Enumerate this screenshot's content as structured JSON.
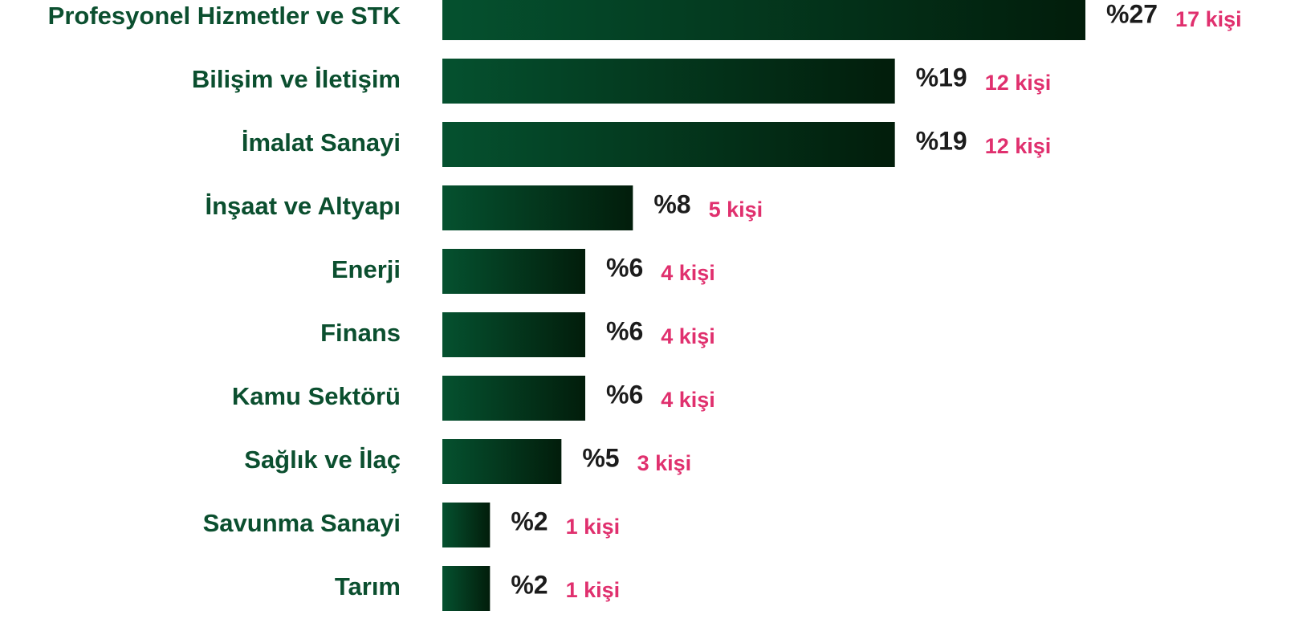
{
  "chart_data": {
    "type": "bar",
    "orientation": "horizontal",
    "categories": [
      "Profesyonel Hizmetler ve STK",
      "Bilişim ve İletişim",
      "İmalat Sanayi",
      "İnşaat ve Altyapı",
      "Enerji",
      "Finans",
      "Kamu Sektörü",
      "Sağlık ve İlaç",
      "Savunma Sanayi",
      "Tarım"
    ],
    "values": [
      27,
      19,
      19,
      8,
      6,
      6,
      6,
      5,
      2,
      2
    ],
    "value_labels": [
      "%27",
      "%19",
      "%19",
      "%8",
      "%6",
      "%6",
      "%6",
      "%5",
      "%2",
      "%2"
    ],
    "counts": [
      17,
      12,
      12,
      5,
      4,
      4,
      4,
      3,
      1,
      1
    ],
    "count_labels": [
      "17 kişi",
      "12 kişi",
      "12 kişi",
      "5 kişi",
      "4 kişi",
      "4 kişi",
      "4 kişi",
      "3 kişi",
      "1 kişi",
      "1 kişi"
    ],
    "gradient": [
      "#05512f",
      "#021d0b"
    ],
    "category_color": "#0b4f2f",
    "value_label_color": "#1c1c1c",
    "count_label_color": "#e0306e"
  }
}
